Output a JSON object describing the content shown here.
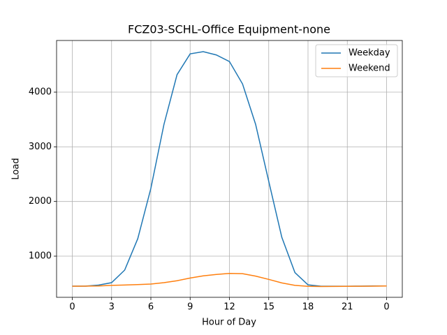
{
  "chart_data": {
    "type": "line",
    "title": "FCZ03-SCHL-Office Equipment-none",
    "x_label": "Hour of Day",
    "y_label": "Load",
    "x": [
      0,
      1,
      2,
      3,
      4,
      5,
      6,
      7,
      8,
      9,
      10,
      11,
      12,
      13,
      14,
      15,
      16,
      17,
      18,
      19,
      20,
      21,
      22,
      23,
      24
    ],
    "series": [
      {
        "name": "Weekday",
        "color": "#1f77b4",
        "values": [
          451,
          451,
          470,
          515,
          745,
          1320,
          2240,
          3410,
          4320,
          4700,
          4740,
          4680,
          4560,
          4150,
          3410,
          2370,
          1345,
          700,
          475,
          450,
          450,
          450,
          452,
          455,
          455
        ]
      },
      {
        "name": "Weekend",
        "color": "#ff7f0e",
        "values": [
          450,
          452,
          455,
          465,
          472,
          480,
          490,
          515,
          550,
          600,
          640,
          665,
          685,
          680,
          635,
          575,
          510,
          465,
          448,
          445,
          447,
          448,
          450,
          452,
          455
        ]
      }
    ],
    "xlim": [
      -1.2,
      25.2
    ],
    "xticks": [
      0,
      3,
      6,
      9,
      12,
      15,
      18,
      21,
      {
        "value": 24,
        "label": "0"
      }
    ],
    "ylim": [
      247,
      4945
    ],
    "yticks": [
      1000,
      2000,
      3000,
      4000
    ],
    "grid": true,
    "legend": "upper right"
  }
}
